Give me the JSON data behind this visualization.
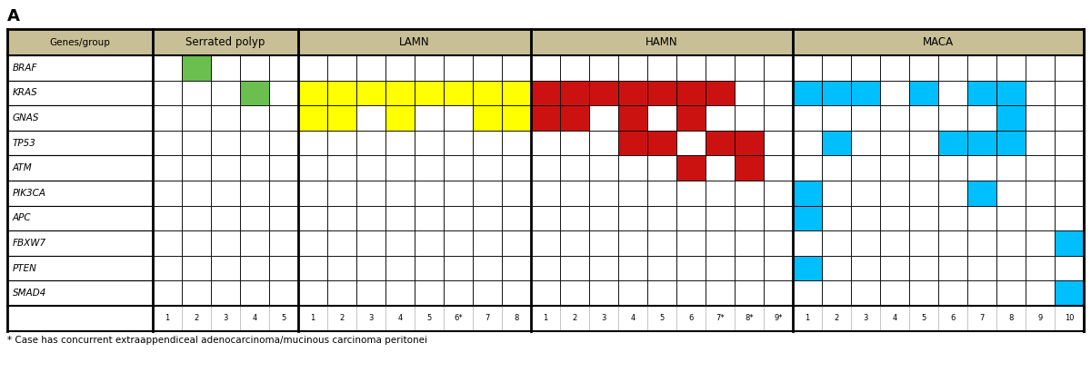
{
  "title_label": "A",
  "genes": [
    "BRAF",
    "KRAS",
    "GNAS",
    "TP53",
    "ATM",
    "PIK3CA",
    "APC",
    "FBXW7",
    "PTEN",
    "SMAD4"
  ],
  "groups": [
    {
      "name": "Serrated polyp",
      "cols": [
        "1",
        "2",
        "3",
        "4",
        "5"
      ],
      "color": "#6BBF4E"
    },
    {
      "name": "LAMN",
      "cols": [
        "1",
        "2",
        "3",
        "4",
        "5",
        "6*",
        "7",
        "8"
      ],
      "color": "#FFFF00"
    },
    {
      "name": "HAMN",
      "cols": [
        "1",
        "2",
        "3",
        "4",
        "5",
        "6",
        "7*",
        "8*",
        "9*"
      ],
      "color": "#CC1111"
    },
    {
      "name": "MACA",
      "cols": [
        "1",
        "2",
        "3",
        "4",
        "5",
        "6",
        "7",
        "8",
        "9",
        "10"
      ],
      "color": "#00BFFF"
    }
  ],
  "colored_cells": {
    "BRAF": {
      "Serrated polyp": [
        1
      ],
      "LAMN": [],
      "HAMN": [],
      "MACA": []
    },
    "KRAS": {
      "Serrated polyp": [
        3
      ],
      "LAMN": [
        0,
        1,
        2,
        3,
        4,
        5,
        6,
        7
      ],
      "HAMN": [
        0,
        1,
        2,
        3,
        4,
        5,
        6
      ],
      "MACA": [
        0,
        1,
        2,
        4,
        6,
        7
      ]
    },
    "GNAS": {
      "Serrated polyp": [],
      "LAMN": [
        0,
        1,
        3,
        6,
        7
      ],
      "HAMN": [
        0,
        1,
        3,
        5
      ],
      "MACA": [
        7
      ]
    },
    "TP53": {
      "Serrated polyp": [],
      "LAMN": [],
      "HAMN": [
        3,
        4,
        6,
        7
      ],
      "MACA": [
        1,
        5,
        6,
        7
      ]
    },
    "ATM": {
      "Serrated polyp": [],
      "LAMN": [],
      "HAMN": [
        5,
        7
      ],
      "MACA": []
    },
    "PIK3CA": {
      "Serrated polyp": [],
      "LAMN": [],
      "HAMN": [],
      "MACA": [
        0,
        6
      ]
    },
    "APC": {
      "Serrated polyp": [],
      "LAMN": [],
      "HAMN": [],
      "MACA": [
        0
      ]
    },
    "FBXW7": {
      "Serrated polyp": [],
      "LAMN": [],
      "HAMN": [],
      "MACA": [
        9
      ]
    },
    "PTEN": {
      "Serrated polyp": [],
      "LAMN": [],
      "HAMN": [],
      "MACA": [
        0
      ]
    },
    "SMAD4": {
      "Serrated polyp": [],
      "LAMN": [],
      "HAMN": [],
      "MACA": [
        9
      ]
    }
  },
  "footer_text": "* Case has concurrent extraappendiceal adenocarcinoma/mucinous carcinoma peritonei",
  "header_bg": "#C8BF96",
  "cell_bg": "#FFFFFF",
  "grid_color": "#000000"
}
